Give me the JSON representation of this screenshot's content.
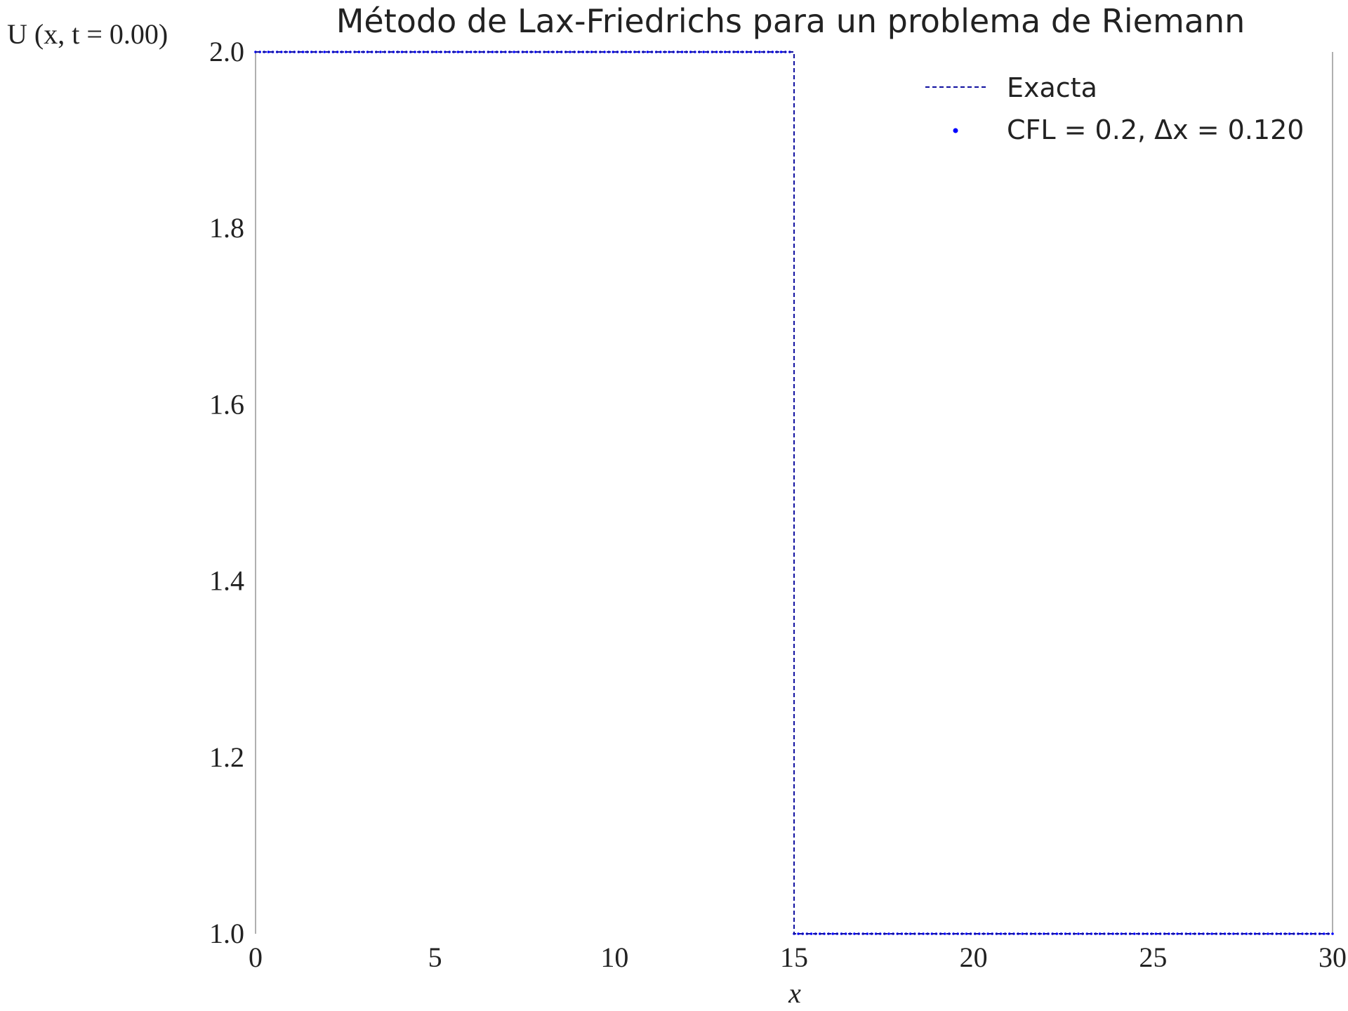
{
  "chart_data": {
    "type": "line",
    "title": "Método de Lax-Friedrichs para un problema de Riemann",
    "xlabel": "x",
    "ylabel": "U (x, t = 0.00)",
    "xlim": [
      0,
      30
    ],
    "ylim": [
      1.0,
      2.0
    ],
    "xticks": [
      0,
      5,
      10,
      15,
      20,
      25,
      30
    ],
    "xtick_labels": [
      "0",
      "5",
      "10",
      "15",
      "20",
      "25",
      "30"
    ],
    "yticks": [
      1.0,
      1.2,
      1.4,
      1.6,
      1.8,
      2.0
    ],
    "ytick_labels": [
      "1.0",
      "1.2",
      "1.4",
      "1.6",
      "1.8",
      "2.0"
    ],
    "grid": false,
    "legend_position": "top-right",
    "series": [
      {
        "name": "Exacta",
        "style": "dashed",
        "color": "#1010a0",
        "x": [
          0,
          15,
          15,
          30
        ],
        "y": [
          2.0,
          2.0,
          1.0,
          1.0
        ]
      },
      {
        "name": "CFL = 0.2, Δx = 0.120",
        "style": "markers",
        "color": "#0000ff",
        "x_start": 0,
        "x_step": 0.12,
        "x_end": 30,
        "discontinuity_x": 15,
        "y_left": 2.0,
        "y_right": 1.0
      }
    ]
  }
}
